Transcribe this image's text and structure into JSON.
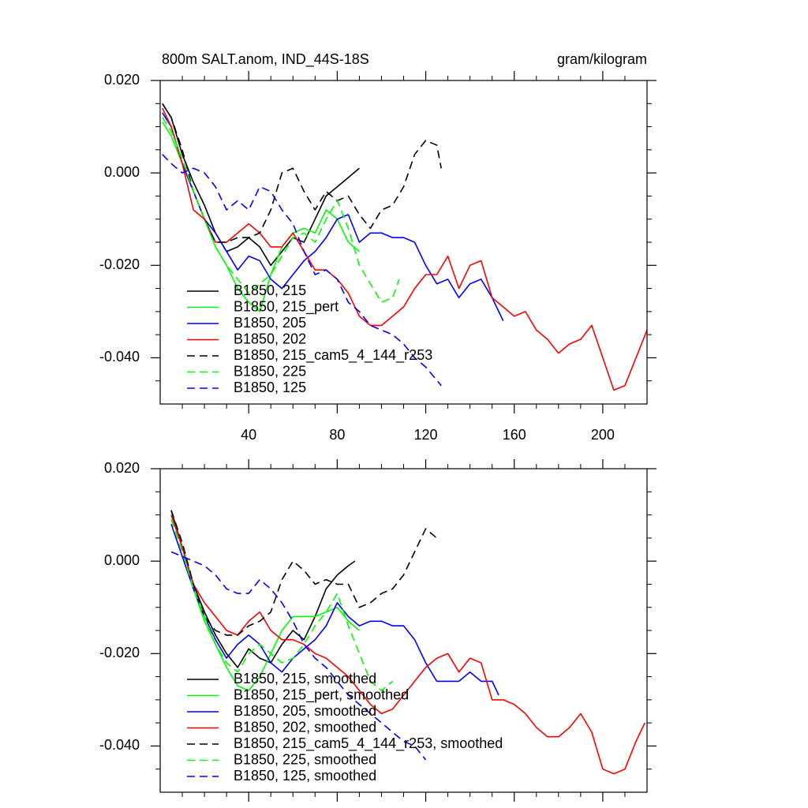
{
  "chart_data": [
    {
      "type": "line",
      "title": "800m SALT.anom, IND_44S-18S",
      "units": "gram/kilogram",
      "xlim": [
        0,
        220
      ],
      "ylim": [
        -0.05,
        0.02
      ],
      "xticks": [
        40,
        80,
        120,
        160,
        200
      ],
      "xtick_labels": true,
      "xminorticks": [
        10,
        20,
        30,
        50,
        60,
        70,
        90,
        100,
        110,
        130,
        140,
        150,
        170,
        180,
        190,
        210
      ],
      "yticks": [
        {
          "value": 0.02,
          "label": "0.020"
        },
        {
          "value": 0,
          "label": "0.000"
        },
        {
          "value": -0.02,
          "label": "-0.020"
        },
        {
          "value": -0.04,
          "label": "-0.040"
        }
      ],
      "yminorticks": [
        0.015,
        0.01,
        0.005,
        -0.005,
        -0.01,
        -0.015,
        -0.025,
        -0.03,
        -0.035,
        -0.045
      ],
      "series": [
        {
          "name": "B1850, 215",
          "color": "#000000",
          "dash": false,
          "x": [
            1,
            5,
            10,
            15,
            20,
            25,
            30,
            35,
            40,
            45,
            50,
            55,
            60,
            65,
            70,
            75,
            80,
            85,
            90
          ],
          "values": [
            0.015,
            0.012,
            0.004,
            -0.002,
            -0.007,
            -0.013,
            -0.017,
            -0.016,
            -0.014,
            -0.016,
            -0.02,
            -0.017,
            -0.014,
            -0.015,
            -0.01,
            -0.005,
            -0.003,
            -0.001,
            0.001
          ]
        },
        {
          "name": "B1850, 215_pert",
          "color": "#00ff00",
          "dash": false,
          "x": [
            1,
            5,
            10,
            15,
            20,
            25,
            30,
            35,
            40,
            45,
            50,
            55,
            60,
            65,
            70,
            75,
            80,
            85,
            90
          ],
          "values": [
            0.011,
            0.008,
            0.002,
            -0.004,
            -0.01,
            -0.016,
            -0.02,
            -0.025,
            -0.028,
            -0.03,
            -0.022,
            -0.016,
            -0.013,
            -0.012,
            -0.013,
            -0.008,
            -0.01,
            -0.015,
            -0.017
          ]
        },
        {
          "name": "B1850, 205",
          "color": "#0000ff",
          "dash": false,
          "x": [
            1,
            5,
            10,
            15,
            20,
            25,
            30,
            35,
            40,
            45,
            50,
            55,
            60,
            65,
            70,
            75,
            80,
            85,
            90,
            95,
            100,
            105,
            110,
            115,
            120,
            125,
            130,
            135,
            140,
            145,
            150,
            155
          ],
          "values": [
            0.013,
            0.01,
            0.002,
            -0.004,
            -0.01,
            -0.013,
            -0.017,
            -0.021,
            -0.018,
            -0.019,
            -0.023,
            -0.025,
            -0.022,
            -0.019,
            -0.017,
            -0.014,
            -0.01,
            -0.009,
            -0.015,
            -0.013,
            -0.013,
            -0.014,
            -0.014,
            -0.015,
            -0.02,
            -0.024,
            -0.023,
            -0.027,
            -0.024,
            -0.023,
            -0.027,
            -0.032
          ]
        },
        {
          "name": "B1850, 202",
          "color": "#ff0000",
          "dash": false,
          "x": [
            1,
            5,
            10,
            15,
            20,
            25,
            30,
            35,
            40,
            45,
            50,
            55,
            60,
            65,
            70,
            75,
            80,
            85,
            90,
            95,
            100,
            105,
            110,
            115,
            120,
            125,
            130,
            135,
            140,
            145,
            150,
            155,
            160,
            165,
            170,
            175,
            180,
            185,
            190,
            195,
            200,
            205,
            210,
            215,
            220
          ],
          "values": [
            0.014,
            0.01,
            0.002,
            -0.008,
            -0.01,
            -0.015,
            -0.015,
            -0.013,
            -0.011,
            -0.013,
            -0.016,
            -0.016,
            -0.013,
            -0.017,
            -0.021,
            -0.021,
            -0.023,
            -0.026,
            -0.031,
            -0.033,
            -0.033,
            -0.031,
            -0.029,
            -0.025,
            -0.022,
            -0.022,
            -0.018,
            -0.025,
            -0.02,
            -0.019,
            -0.027,
            -0.029,
            -0.031,
            -0.03,
            -0.034,
            -0.036,
            -0.039,
            -0.037,
            -0.036,
            -0.033,
            -0.04,
            -0.047,
            -0.046,
            -0.04,
            -0.034
          ]
        },
        {
          "name": "B1850, 215_cam5_4_144_r253",
          "color": "#000000",
          "dash": true,
          "x": [
            1,
            5,
            10,
            15,
            20,
            25,
            30,
            35,
            40,
            45,
            50,
            55,
            60,
            65,
            70,
            75,
            80,
            85,
            90,
            95,
            100,
            105,
            110,
            115,
            120,
            125,
            127
          ],
          "values": [
            0.015,
            0.012,
            0.005,
            -0.004,
            -0.01,
            -0.015,
            -0.015,
            -0.014,
            -0.014,
            -0.013,
            -0.008,
            0.0,
            0.001,
            -0.004,
            -0.008,
            -0.004,
            -0.006,
            -0.005,
            -0.009,
            -0.012,
            -0.008,
            -0.007,
            -0.003,
            0.004,
            0.007,
            0.006,
            0.001
          ]
        },
        {
          "name": "B1850, 225",
          "color": "#00ff00",
          "dash": true,
          "x": [
            1,
            5,
            10,
            15,
            20,
            25,
            30,
            35,
            40,
            45,
            50,
            55,
            60,
            65,
            70,
            75,
            80,
            85,
            90,
            95,
            100,
            105,
            108
          ],
          "values": [
            0.012,
            0.009,
            0.003,
            -0.004,
            -0.01,
            -0.016,
            -0.02,
            -0.023,
            -0.026,
            -0.024,
            -0.022,
            -0.018,
            -0.014,
            -0.013,
            -0.015,
            -0.01,
            -0.006,
            -0.012,
            -0.02,
            -0.024,
            -0.028,
            -0.027,
            -0.023
          ]
        },
        {
          "name": "B1850, 125",
          "color": "#0000ff",
          "dash": true,
          "x": [
            1,
            5,
            10,
            15,
            20,
            25,
            30,
            35,
            40,
            45,
            50,
            55,
            60,
            65,
            70,
            75,
            80,
            85,
            90,
            95,
            100,
            105,
            110,
            115,
            120,
            127
          ],
          "values": [
            0.004,
            0.002,
            0.0,
            0.001,
            0.0,
            -0.003,
            -0.008,
            -0.006,
            -0.008,
            -0.003,
            -0.004,
            -0.008,
            -0.011,
            -0.017,
            -0.022,
            -0.021,
            -0.023,
            -0.028,
            -0.03,
            -0.033,
            -0.034,
            -0.035,
            -0.037,
            -0.04,
            -0.042,
            -0.046
          ]
        }
      ]
    },
    {
      "type": "line",
      "xlim": [
        0,
        220
      ],
      "ylim": [
        -0.05,
        0.02
      ],
      "xticks": [
        40,
        80,
        120,
        160,
        200
      ],
      "xtick_labels": false,
      "xminorticks": [
        10,
        20,
        30,
        50,
        60,
        70,
        90,
        100,
        110,
        130,
        140,
        150,
        170,
        180,
        190,
        210
      ],
      "yticks": [
        {
          "value": 0.02,
          "label": "0.020"
        },
        {
          "value": 0,
          "label": "0.000"
        },
        {
          "value": -0.02,
          "label": "-0.020"
        },
        {
          "value": -0.04,
          "label": "-0.040"
        }
      ],
      "yminorticks": [
        0.015,
        0.01,
        0.005,
        -0.005,
        -0.01,
        -0.015,
        -0.025,
        -0.03,
        -0.035,
        -0.045
      ],
      "series": [
        {
          "name": "B1850, 215, smoothed",
          "color": "#000000",
          "dash": false,
          "x": [
            5,
            10,
            15,
            20,
            25,
            30,
            35,
            40,
            45,
            50,
            55,
            60,
            65,
            70,
            75,
            80,
            85,
            88
          ],
          "values": [
            0.011,
            0.003,
            -0.005,
            -0.011,
            -0.016,
            -0.02,
            -0.023,
            -0.019,
            -0.021,
            -0.022,
            -0.018,
            -0.015,
            -0.017,
            -0.012,
            -0.006,
            -0.003,
            -0.001,
            0.0
          ]
        },
        {
          "name": "B1850, 215_pert, smoothed",
          "color": "#00ff00",
          "dash": false,
          "x": [
            5,
            10,
            15,
            20,
            25,
            30,
            35,
            40,
            45,
            50,
            55,
            60,
            65,
            70,
            75,
            80,
            85,
            90
          ],
          "values": [
            0.01,
            0.003,
            -0.006,
            -0.013,
            -0.018,
            -0.023,
            -0.027,
            -0.028,
            -0.025,
            -0.02,
            -0.015,
            -0.012,
            -0.012,
            -0.012,
            -0.011,
            -0.01,
            -0.013,
            -0.015
          ]
        },
        {
          "name": "B1850, 205, smoothed",
          "color": "#0000ff",
          "dash": false,
          "x": [
            5,
            10,
            15,
            20,
            25,
            30,
            35,
            40,
            45,
            50,
            55,
            60,
            65,
            70,
            75,
            80,
            85,
            90,
            95,
            100,
            105,
            110,
            115,
            120,
            125,
            130,
            135,
            140,
            145,
            150,
            153
          ],
          "values": [
            0.008,
            0.001,
            -0.006,
            -0.012,
            -0.017,
            -0.021,
            -0.018,
            -0.016,
            -0.018,
            -0.022,
            -0.024,
            -0.021,
            -0.019,
            -0.017,
            -0.014,
            -0.009,
            -0.012,
            -0.014,
            -0.013,
            -0.013,
            -0.014,
            -0.014,
            -0.017,
            -0.022,
            -0.026,
            -0.026,
            -0.026,
            -0.024,
            -0.026,
            -0.026,
            -0.029
          ]
        },
        {
          "name": "B1850, 202, smoothed",
          "color": "#ff0000",
          "dash": false,
          "x": [
            5,
            10,
            15,
            20,
            25,
            30,
            35,
            40,
            45,
            50,
            55,
            60,
            65,
            70,
            75,
            80,
            85,
            90,
            95,
            100,
            105,
            110,
            115,
            120,
            125,
            130,
            135,
            140,
            145,
            150,
            155,
            160,
            165,
            170,
            175,
            180,
            185,
            190,
            195,
            200,
            205,
            210,
            215,
            219
          ],
          "values": [
            0.01,
            0.003,
            -0.005,
            -0.009,
            -0.012,
            -0.015,
            -0.016,
            -0.013,
            -0.011,
            -0.015,
            -0.017,
            -0.017,
            -0.018,
            -0.02,
            -0.021,
            -0.023,
            -0.025,
            -0.028,
            -0.031,
            -0.033,
            -0.032,
            -0.029,
            -0.026,
            -0.023,
            -0.021,
            -0.02,
            -0.024,
            -0.021,
            -0.022,
            -0.03,
            -0.03,
            -0.031,
            -0.033,
            -0.036,
            -0.038,
            -0.038,
            -0.036,
            -0.033,
            -0.037,
            -0.045,
            -0.046,
            -0.045,
            -0.039,
            -0.035
          ]
        },
        {
          "name": "B1850, 215_cam5_4_144_r253, smoothed",
          "color": "#000000",
          "dash": true,
          "x": [
            5,
            10,
            15,
            20,
            25,
            30,
            35,
            40,
            45,
            50,
            55,
            60,
            65,
            70,
            75,
            80,
            85,
            90,
            95,
            100,
            105,
            110,
            115,
            120,
            125
          ],
          "values": [
            0.011,
            0.004,
            -0.005,
            -0.012,
            -0.015,
            -0.016,
            -0.016,
            -0.014,
            -0.013,
            -0.011,
            -0.004,
            0.0,
            -0.002,
            -0.005,
            -0.004,
            -0.005,
            -0.005,
            -0.01,
            -0.009,
            -0.007,
            -0.006,
            -0.003,
            0.002,
            0.007,
            0.005
          ]
        },
        {
          "name": "B1850, 225, smoothed",
          "color": "#00ff00",
          "dash": true,
          "x": [
            5,
            10,
            15,
            20,
            25,
            30,
            35,
            40,
            45,
            50,
            55,
            60,
            65,
            70,
            75,
            80,
            85,
            90,
            95,
            100,
            105
          ],
          "values": [
            0.009,
            0.002,
            -0.006,
            -0.012,
            -0.018,
            -0.022,
            -0.024,
            -0.02,
            -0.018,
            -0.02,
            -0.022,
            -0.021,
            -0.018,
            -0.014,
            -0.011,
            -0.007,
            -0.014,
            -0.02,
            -0.026,
            -0.028,
            -0.026
          ]
        },
        {
          "name": "B1850, 125, smoothed",
          "color": "#0000ff",
          "dash": true,
          "x": [
            5,
            10,
            15,
            20,
            25,
            30,
            35,
            40,
            45,
            50,
            55,
            60,
            65,
            70,
            75,
            80,
            85,
            90,
            95,
            100,
            105,
            110,
            115,
            120
          ],
          "values": [
            0.002,
            0.001,
            0.0,
            -0.001,
            -0.003,
            -0.006,
            -0.007,
            -0.007,
            -0.004,
            -0.006,
            -0.009,
            -0.013,
            -0.018,
            -0.021,
            -0.023,
            -0.026,
            -0.029,
            -0.031,
            -0.033,
            -0.035,
            -0.037,
            -0.039,
            -0.04,
            -0.043
          ]
        }
      ]
    }
  ]
}
